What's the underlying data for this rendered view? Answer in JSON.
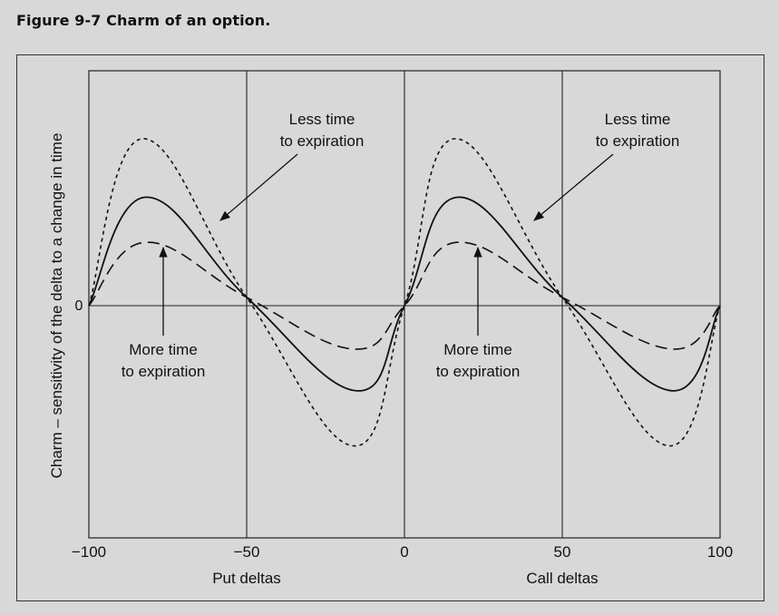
{
  "figure_title": "Figure 9-7  Charm of an option.",
  "chart_data": {
    "type": "line",
    "xlabel_ticks": [
      "−100",
      "−50",
      "0",
      "50",
      "100"
    ],
    "x_ticks": [
      -100,
      -50,
      0,
      50,
      100
    ],
    "xlim": [
      -100,
      100
    ],
    "ylabel": "Charm – sensitivity of the delta to a change in time",
    "y_tick_label": "0",
    "grid_vertical": true,
    "sections": [
      "Put deltas",
      "Call deltas"
    ],
    "annotations": {
      "less_time_left": [
        "Less time",
        "to expiration"
      ],
      "less_time_right": [
        "Less time",
        "to expiration"
      ],
      "more_time_left": [
        "More time",
        "to expiration"
      ],
      "more_time_right": [
        "More time",
        "to expiration"
      ]
    },
    "series": [
      {
        "style": "dotted",
        "color": "#111111",
        "x": [
          -100,
          -83,
          -50,
          -16,
          0,
          16,
          50,
          84,
          100
        ],
        "y": [
          0,
          1.0,
          0.05,
          -0.84,
          0,
          1.0,
          0.05,
          -0.84,
          0
        ]
      },
      {
        "style": "solid",
        "color": "#111111",
        "x": [
          -100,
          -82,
          -50,
          -15,
          0,
          17,
          50,
          85,
          100
        ],
        "y": [
          0,
          0.65,
          0.05,
          -0.51,
          0,
          0.65,
          0.05,
          -0.51,
          0
        ]
      },
      {
        "style": "dashed",
        "color": "#111111",
        "x": [
          -100,
          -82,
          -50,
          -16,
          0,
          17,
          50,
          85,
          100
        ],
        "y": [
          0,
          0.38,
          0.05,
          -0.26,
          0,
          0.38,
          0.05,
          -0.26,
          0
        ]
      }
    ]
  }
}
